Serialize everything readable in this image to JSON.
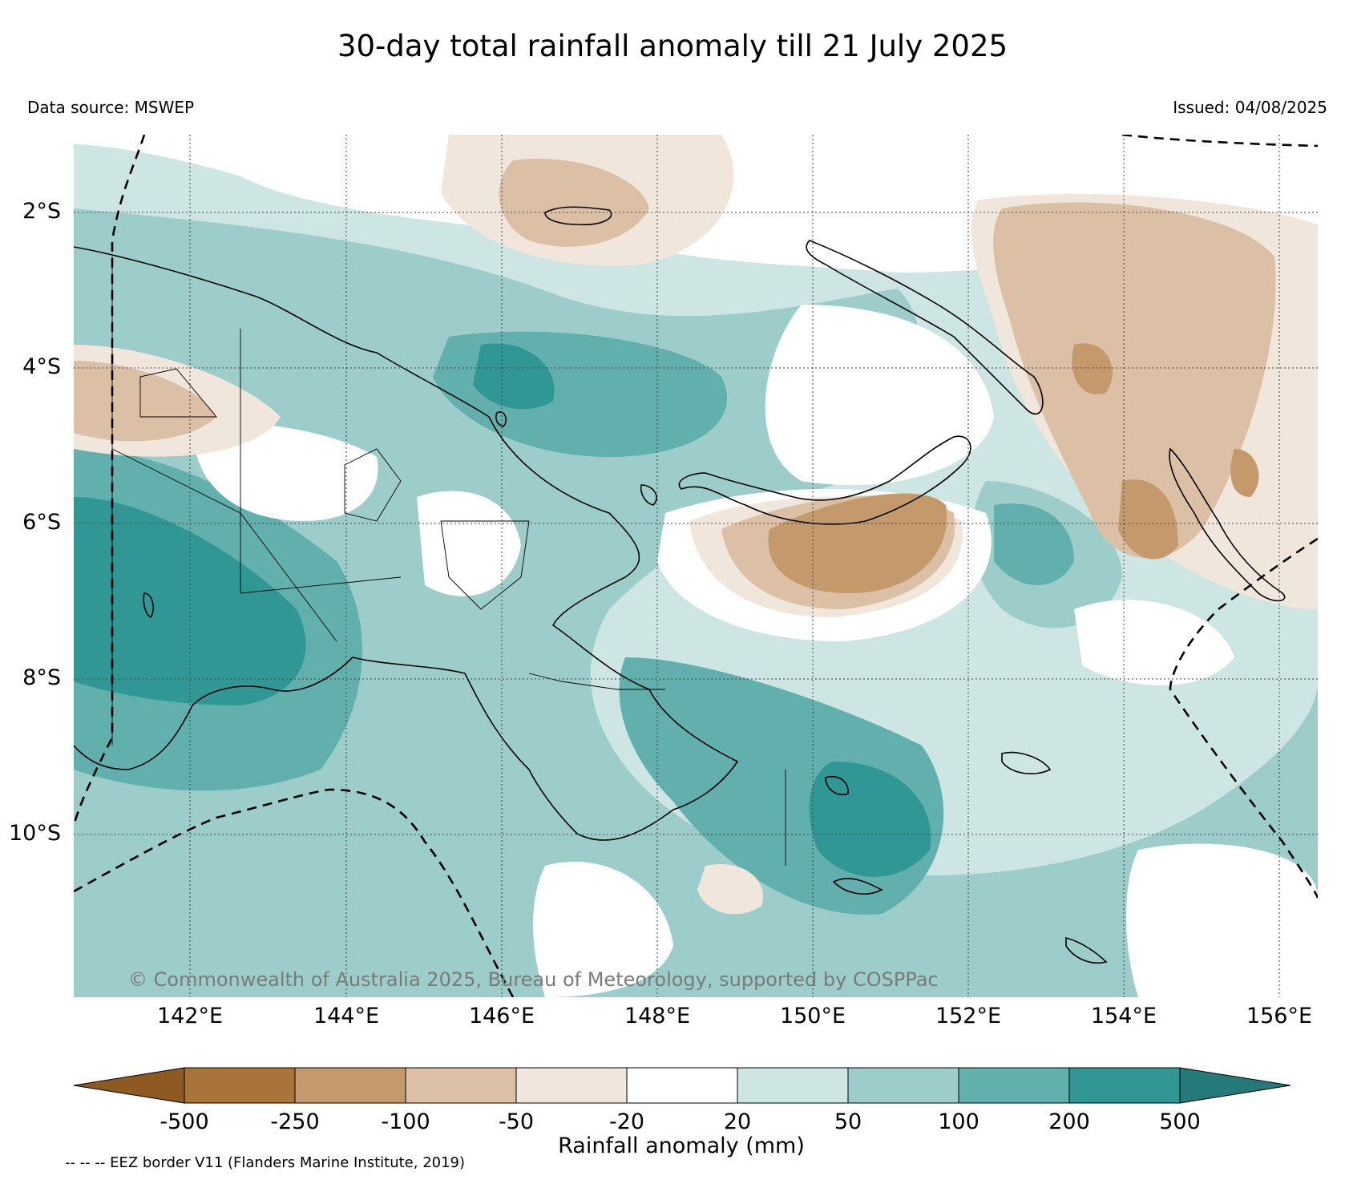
{
  "title": "30-day total rainfall anomaly till 21 July 2025",
  "data_source": "Data source: MSWEP",
  "issued": "Issued: 04/08/2025",
  "copyright": "© Commonwealth of Australia 2025, Bureau of Meteorology, supported by COSPPac",
  "footnote": "-- -- -- EEZ border V11 (Flanders Marine Institute, 2019)",
  "latitude_labels": [
    "2°S",
    "4°S",
    "6°S",
    "8°S",
    "10°S"
  ],
  "longitude_labels": [
    "142°E",
    "144°E",
    "146°E",
    "148°E",
    "150°E",
    "152°E",
    "154°E",
    "156°E"
  ],
  "colorbar": {
    "label": "Rainfall anomaly (mm)",
    "ticks": [
      "-500",
      "-250",
      "-100",
      "-50",
      "-20",
      "20",
      "50",
      "100",
      "200",
      "500"
    ],
    "colors": [
      "#8e5a22",
      "#a9743a",
      "#c49a6c",
      "#dbc0a5",
      "#f0e6dc",
      "#ffffff",
      "#cde5e3",
      "#9ccdcb",
      "#62b0ae",
      "#319795",
      "#247a78"
    ]
  },
  "map_colors": {
    "background": "#cde5e3",
    "land_outline": "#000000",
    "graticule": "#444444",
    "eez": "#000000"
  }
}
